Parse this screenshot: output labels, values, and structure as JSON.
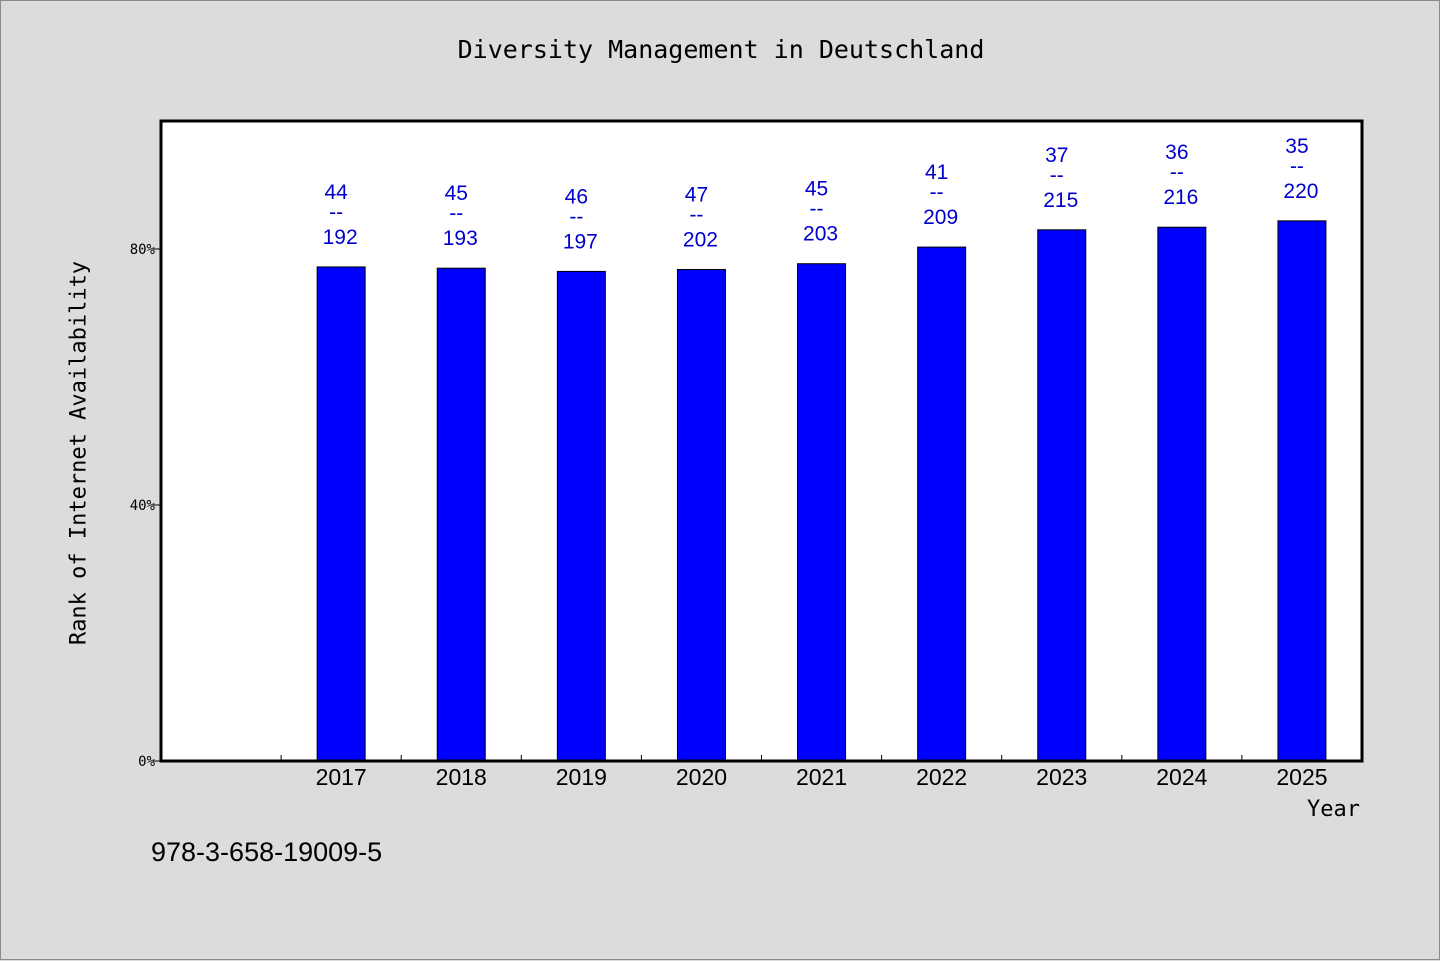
{
  "chart_data": {
    "type": "bar",
    "title": "Diversity Management in Deutschland",
    "xlabel": "Year",
    "ylabel": "Rank of Internet Availability",
    "ylim": [
      0,
      100
    ],
    "yticks": [
      {
        "value": 0,
        "label": "0%"
      },
      {
        "value": 40,
        "label": "40%"
      },
      {
        "value": 80,
        "label": "80%"
      }
    ],
    "categories": [
      "2017",
      "2018",
      "2019",
      "2020",
      "2021",
      "2022",
      "2023",
      "2024",
      "2025"
    ],
    "values": [
      77.2,
      77.0,
      76.5,
      76.8,
      77.7,
      80.3,
      83.0,
      83.4,
      84.4
    ],
    "annotations": [
      {
        "top": "44",
        "separator": "--",
        "bottom": "192"
      },
      {
        "top": "45",
        "separator": "--",
        "bottom": "193"
      },
      {
        "top": "46",
        "separator": "--",
        "bottom": "197"
      },
      {
        "top": "47",
        "separator": "--",
        "bottom": "202"
      },
      {
        "top": "45",
        "separator": "--",
        "bottom": "203"
      },
      {
        "top": "41",
        "separator": "--",
        "bottom": "209"
      },
      {
        "top": "37",
        "separator": "--",
        "bottom": "215"
      },
      {
        "top": "36",
        "separator": "--",
        "bottom": "216"
      },
      {
        "top": "35",
        "separator": "--",
        "bottom": "220"
      }
    ],
    "bar_color": "#0000ff",
    "label_color": "#0000cc",
    "grid": false,
    "legend": "none"
  },
  "footer": {
    "isbn": "978-3-658-19009-5"
  }
}
